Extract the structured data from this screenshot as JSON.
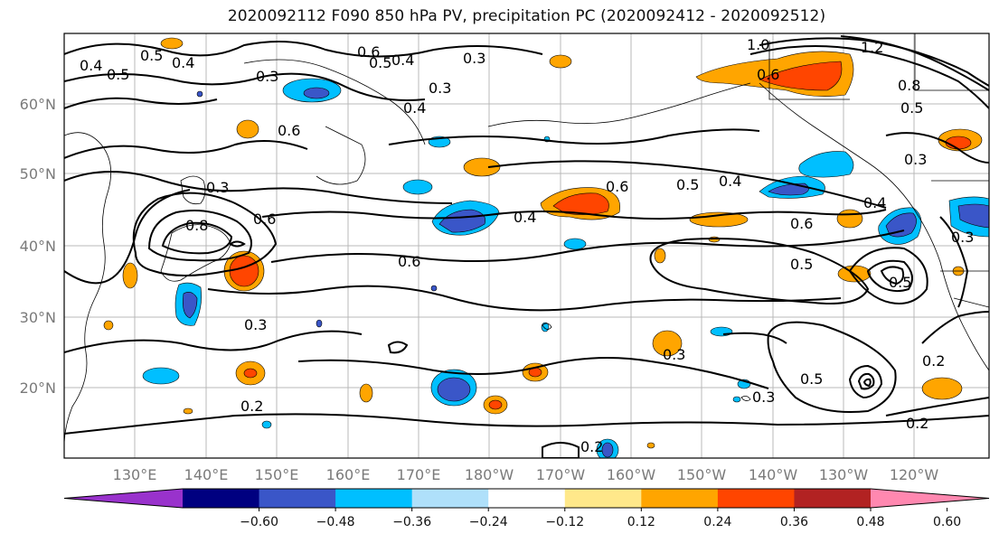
{
  "title": "2020092112 F090 850 hPa PV, precipitation PC (2020092412 - 2020092512)",
  "lat_labels": [
    "60°N",
    "50°N",
    "40°N",
    "30°N",
    "20°N"
  ],
  "lon_labels": [
    "130°E",
    "140°E",
    "150°E",
    "160°E",
    "170°E",
    "180°W",
    "170°W",
    "160°W",
    "150°W",
    "140°W",
    "130°W",
    "120°W"
  ],
  "colorbar": {
    "colors": [
      "#9932cc",
      "#000080",
      "#3a56c8",
      "#00bfff",
      "#afe0fa",
      "#ffffff",
      "#ffe88a",
      "#ffa500",
      "#ff4500",
      "#b22222",
      "#ff88b0"
    ],
    "ticks": [
      "−0.60",
      "−0.48",
      "−0.36",
      "−0.24",
      "−0.12",
      "0.12",
      "0.24",
      "0.36",
      "0.48",
      "0.60"
    ]
  },
  "contour_labels": [
    "0.4",
    "0.5",
    "0.4",
    "0.3",
    "0.5",
    "0.6",
    "0.4",
    "0.3",
    "0.5",
    "0.3",
    "0.4",
    "1.0",
    "1.2",
    "0.6",
    "0.8",
    "0.5",
    "0.3",
    "0.3",
    "0.8",
    "0.6",
    "0.6",
    "0.4",
    "0.5",
    "0.4",
    "0.6",
    "0.4",
    "0.6",
    "0.5",
    "0.3",
    "0.6",
    "0.3",
    "0.2",
    "0.3",
    "0.5",
    "0.5",
    "0.3",
    "0.2",
    "0.2",
    "0.2"
  ]
}
